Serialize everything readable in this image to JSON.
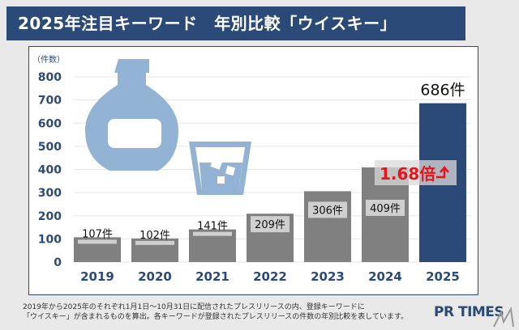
{
  "title": "2025年注目キーワード　年別比較「ウイスキー」",
  "footnote": [
    "2019年から2025年のそれぞれ1月1日～10月31日に配信されたプレスリリースの内、登録キーワードに",
    "「ウイスキー」が含まれるものを算出。各キーワードが登録されたプレスリリースの件数の年別比較を表しています。"
  ],
  "brand": "PR TIMES",
  "chart_data": {
    "type": "bar",
    "ylabel": "（件数）",
    "categories": [
      "2019",
      "2020",
      "2021",
      "2022",
      "2023",
      "2024",
      "2025"
    ],
    "values": [
      107,
      102,
      141,
      209,
      306,
      409,
      686
    ],
    "data_labels": [
      "107件",
      "102件",
      "141件",
      "209件",
      "306件",
      "409件",
      "686件"
    ],
    "ylim": [
      0,
      800
    ],
    "yticks": [
      0,
      100,
      200,
      300,
      400,
      500,
      600,
      700,
      800
    ],
    "grid": true,
    "annotation": "1.68倍",
    "colors": {
      "bar": "#808080",
      "highlight": "#2c4a78",
      "label_box": "#cfcfcf",
      "annotation": "#e8141c",
      "icon": "#92b3d3"
    },
    "icons": [
      "whisky-bottle-icon",
      "whisky-glass-icon"
    ]
  }
}
